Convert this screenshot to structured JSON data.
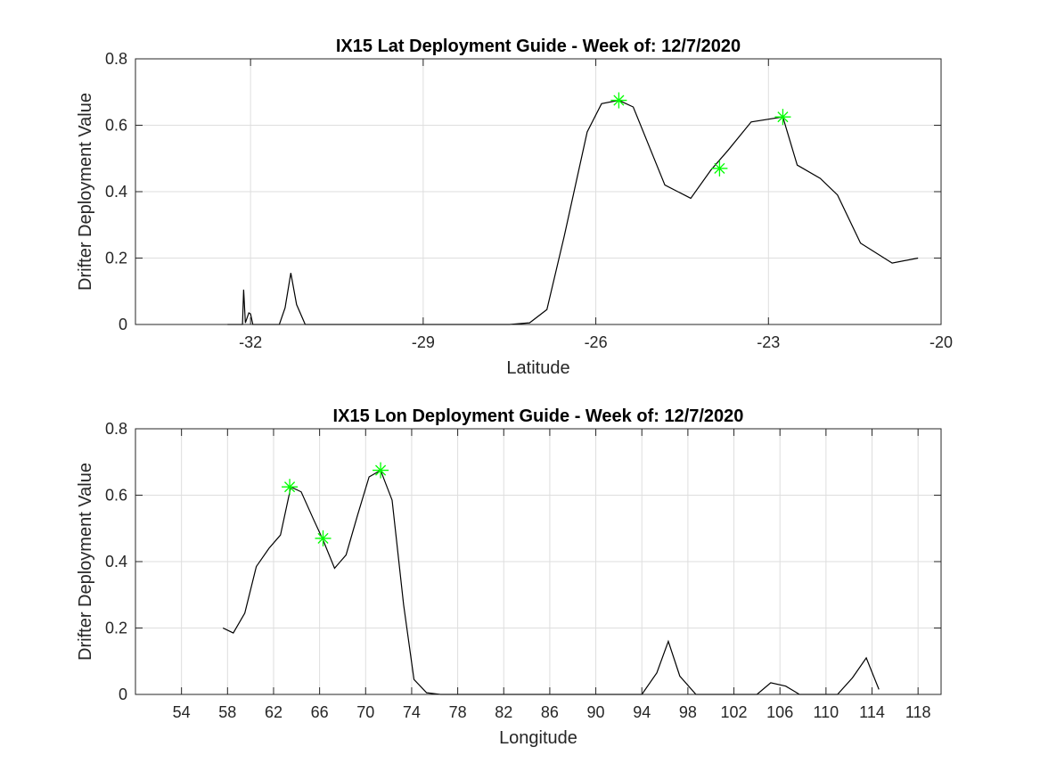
{
  "chart_data": [
    {
      "type": "line",
      "title": "IX15 Lat Deployment Guide - Week of: 12/7/2020",
      "xlabel": "Latitude",
      "ylabel": "Drifter Deployment Value",
      "xlim": [
        -34,
        -20
      ],
      "ylim": [
        0,
        0.8
      ],
      "xticks": [
        -32,
        -29,
        -26,
        -23,
        -20
      ],
      "yticks": [
        0,
        0.2,
        0.4,
        0.6,
        0.8
      ],
      "grid": true,
      "series": [
        {
          "color": "#000000",
          "x": [
            -32.4,
            -32.14,
            -32.12,
            -32.09,
            -32.03,
            -32.0,
            -31.96,
            -31.5,
            -31.4,
            -31.3,
            -31.2,
            -31.05,
            -30.5,
            -29.0,
            -27.5,
            -27.15,
            -26.85,
            -26.55,
            -26.15,
            -25.9,
            -25.6,
            -25.35,
            -24.8,
            -24.35,
            -24.0,
            -23.7,
            -23.3,
            -22.75,
            -22.5,
            -22.1,
            -21.8,
            -21.4,
            -20.85,
            -20.4
          ],
          "y": [
            0,
            0,
            0.105,
            0.005,
            0.035,
            0.032,
            0,
            0,
            0.05,
            0.155,
            0.06,
            0,
            0,
            0,
            0,
            0.005,
            0.045,
            0.265,
            0.58,
            0.665,
            0.675,
            0.655,
            0.42,
            0.38,
            0.465,
            0.525,
            0.61,
            0.625,
            0.48,
            0.44,
            0.39,
            0.245,
            0.185,
            0.2
          ]
        }
      ],
      "markers": {
        "color": "#00ff00",
        "x": [
          -25.6,
          -23.85,
          -22.75
        ],
        "y": [
          0.675,
          0.47,
          0.625
        ]
      }
    },
    {
      "type": "line",
      "title": "IX15 Lon Deployment Guide - Week of: 12/7/2020",
      "xlabel": "Longitude",
      "ylabel": "Drifter Deployment Value",
      "xlim": [
        50,
        120
      ],
      "ylim": [
        0,
        0.8
      ],
      "xticks": [
        54,
        58,
        62,
        66,
        70,
        74,
        78,
        82,
        86,
        90,
        94,
        98,
        102,
        106,
        110,
        114,
        118
      ],
      "yticks": [
        0,
        0.2,
        0.4,
        0.6,
        0.8
      ],
      "grid": true,
      "series": [
        {
          "color": "#000000",
          "x": [
            57.6,
            58.5,
            59.5,
            60.5,
            61.6,
            62.6,
            63.5,
            64.4,
            65.5,
            66.3,
            67.3,
            68.3,
            69.3,
            70.3,
            71.3,
            72.3,
            73.3,
            74.2,
            75.3,
            76.5,
            78.0,
            94.0,
            95.3,
            96.3,
            97.3,
            98.7,
            100.0,
            104.0,
            105.2,
            106.5,
            107.7,
            111.0,
            112.3,
            113.5,
            114.6
          ],
          "y": [
            0.2,
            0.185,
            0.245,
            0.385,
            0.44,
            0.48,
            0.625,
            0.61,
            0.525,
            0.465,
            0.38,
            0.42,
            0.54,
            0.655,
            0.675,
            0.585,
            0.27,
            0.045,
            0.005,
            0,
            0,
            0,
            0.065,
            0.16,
            0.055,
            0,
            0,
            0,
            0.035,
            0.025,
            0,
            0,
            0.05,
            0.11,
            0.015
          ]
        }
      ],
      "markers": {
        "color": "#00ff00",
        "x": [
          63.4,
          66.3,
          71.3
        ],
        "y": [
          0.625,
          0.47,
          0.675
        ]
      }
    }
  ]
}
